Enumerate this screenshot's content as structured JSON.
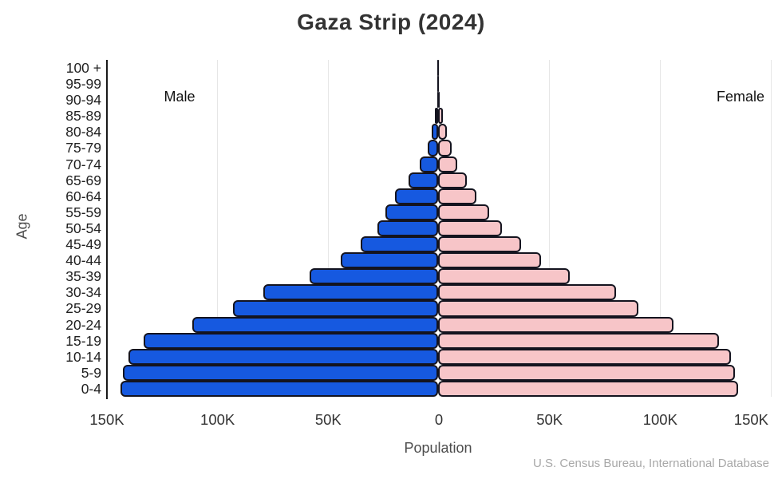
{
  "title": "Gaza Strip (2024)",
  "side_labels": {
    "male": "Male",
    "female": "Female"
  },
  "axis": {
    "ylabel": "Age",
    "xlabel": "Population"
  },
  "source": "U.S. Census Bureau, International Database",
  "colors": {
    "male_bar": "#1659e0",
    "female_bar": "#f7c5c8",
    "bar_outline": "#14141f",
    "gridline": "#e6e6e6",
    "axis_spine": "#1a1a1a"
  },
  "chart_data": {
    "type": "bar",
    "subtype": "population-pyramid",
    "title": "Gaza Strip (2024)",
    "xlabel": "Population",
    "ylabel": "Age",
    "unit": "thousands of people",
    "xlim_k": [
      -150,
      150
    ],
    "grid": true,
    "legend_position": "in-plot text labels Male (left) / Female (right)",
    "xticks": [
      "150K",
      "100K",
      "50K",
      "0",
      "50K",
      "100K",
      "150K"
    ],
    "tick_values_k": [
      -150,
      -100,
      -50,
      0,
      50,
      100,
      150
    ],
    "age_groups": [
      "100 +",
      "95-99",
      "90-94",
      "85-89",
      "80-84",
      "75-79",
      "70-74",
      "65-69",
      "60-64",
      "55-59",
      "50-54",
      "45-49",
      "40-44",
      "35-39",
      "30-34",
      "25-29",
      "20-24",
      "15-19",
      "10-14",
      "5-9",
      "0-4"
    ],
    "series": [
      {
        "name": "Male",
        "side": "left",
        "color": "#1659e0",
        "values_k": [
          0.1,
          0.2,
          0.5,
          1.5,
          3.0,
          4.6,
          8.3,
          13.5,
          19.3,
          23.8,
          27.5,
          35,
          44,
          58,
          79,
          92.5,
          111,
          133,
          140,
          142.5,
          143.5
        ]
      },
      {
        "name": "Female",
        "side": "right",
        "color": "#f7c5c8",
        "values_k": [
          0.1,
          0.3,
          0.8,
          2.3,
          4.0,
          6.0,
          8.5,
          13.0,
          17.3,
          23.0,
          29.0,
          37.5,
          46.5,
          59.5,
          80.5,
          90.5,
          106.5,
          127,
          132.5,
          134,
          135.5
        ]
      }
    ]
  }
}
